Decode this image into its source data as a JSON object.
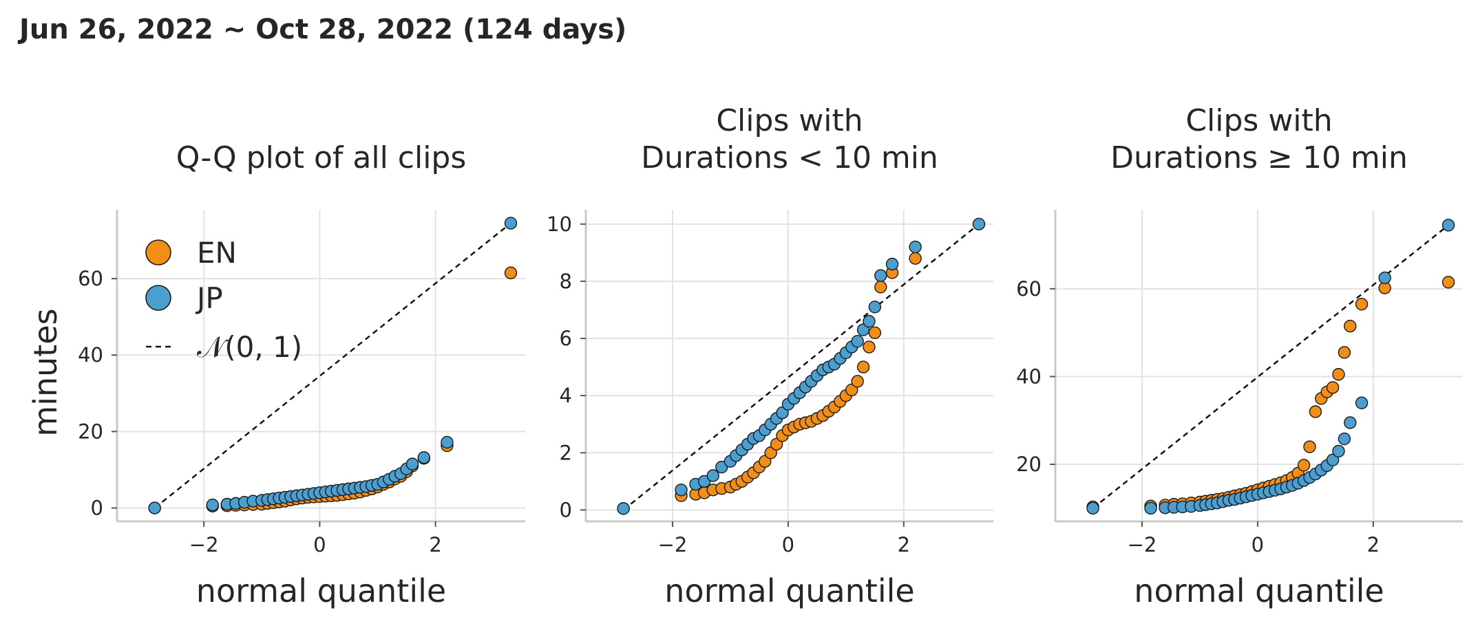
{
  "figure": {
    "suptitle": "Jun 26, 2022 ~ Oct 28, 2022 (124 days)",
    "colors": {
      "EN": "#f28e16",
      "JP": "#4a9fd0",
      "reference": "#111111",
      "grid": "#e2e2e2",
      "axis": "#c8c8c8"
    }
  },
  "chart_data": [
    {
      "type": "scatter",
      "title": "Q-Q plot of all clips",
      "xlabel": "normal quantile",
      "ylabel": "minutes",
      "xlim": [
        -3.5,
        3.55
      ],
      "ylim": [
        -3.5,
        78
      ],
      "xticks": [
        -2,
        0,
        2
      ],
      "xtick_labels": [
        "−2",
        "0",
        "2"
      ],
      "yticks": [
        0,
        20,
        40,
        60
      ],
      "ytick_labels": [
        "0",
        "20",
        "40",
        "60"
      ],
      "grid": true,
      "legend": {
        "placement": "top-left",
        "entries": [
          "EN",
          "JP",
          "𝒩(0, 1)"
        ]
      },
      "reference_line": {
        "name": "𝒩(0, 1)",
        "from": [
          -2.85,
          0
        ],
        "to": [
          3.3,
          74.5
        ]
      },
      "series": [
        {
          "name": "EN",
          "x": [
            -2.85,
            -1.85,
            -1.6,
            -1.45,
            -1.3,
            -1.15,
            -1.0,
            -0.9,
            -0.8,
            -0.7,
            -0.6,
            -0.5,
            -0.4,
            -0.3,
            -0.2,
            -0.1,
            0,
            0.1,
            0.2,
            0.3,
            0.4,
            0.5,
            0.6,
            0.7,
            0.8,
            0.9,
            1.0,
            1.1,
            1.2,
            1.3,
            1.4,
            1.5,
            1.6,
            1.8,
            2.2,
            3.3
          ],
          "y": [
            0,
            0.5,
            0.6,
            0.7,
            0.8,
            0.9,
            1.0,
            1.2,
            1.4,
            1.6,
            1.8,
            2.1,
            2.4,
            2.6,
            2.8,
            2.9,
            3.0,
            3.1,
            3.2,
            3.3,
            3.5,
            3.7,
            3.9,
            4.2,
            4.6,
            5.0,
            5.5,
            6.2,
            6.8,
            7.6,
            8.3,
            9.5,
            11.0,
            13.0,
            16.3,
            61.5
          ]
        },
        {
          "name": "JP",
          "x": [
            -2.85,
            -1.85,
            -1.6,
            -1.45,
            -1.3,
            -1.15,
            -1.0,
            -0.9,
            -0.8,
            -0.7,
            -0.6,
            -0.5,
            -0.4,
            -0.3,
            -0.2,
            -0.1,
            0,
            0.1,
            0.2,
            0.3,
            0.4,
            0.5,
            0.6,
            0.7,
            0.8,
            0.9,
            1.0,
            1.1,
            1.2,
            1.3,
            1.4,
            1.5,
            1.6,
            1.8,
            2.2,
            3.3
          ],
          "y": [
            0,
            0.8,
            1.0,
            1.2,
            1.5,
            1.8,
            2.0,
            2.2,
            2.4,
            2.6,
            2.8,
            3.0,
            3.2,
            3.4,
            3.6,
            3.8,
            4.0,
            4.2,
            4.4,
            4.6,
            4.8,
            5.0,
            5.2,
            5.4,
            5.6,
            5.9,
            6.2,
            6.8,
            7.5,
            8.3,
            9.0,
            10.2,
            11.5,
            13.2,
            17.2,
            74.5
          ]
        }
      ]
    },
    {
      "type": "scatter",
      "title": "Clips with\nDurations  <  10 min",
      "xlabel": "normal quantile",
      "ylabel": "",
      "xlim": [
        -3.5,
        3.55
      ],
      "ylim": [
        -0.4,
        10.5
      ],
      "xticks": [
        -2,
        0,
        2
      ],
      "xtick_labels": [
        "−2",
        "0",
        "2"
      ],
      "yticks": [
        0,
        2,
        4,
        6,
        8,
        10
      ],
      "ytick_labels": [
        "0",
        "2",
        "4",
        "6",
        "8",
        "10"
      ],
      "grid": true,
      "reference_line": {
        "name": "𝒩(0, 1)",
        "from": [
          -2.85,
          0
        ],
        "to": [
          3.3,
          10
        ]
      },
      "series": [
        {
          "name": "EN",
          "x": [
            -2.85,
            -1.85,
            -1.6,
            -1.45,
            -1.3,
            -1.15,
            -1.0,
            -0.9,
            -0.8,
            -0.7,
            -0.6,
            -0.5,
            -0.4,
            -0.3,
            -0.2,
            -0.1,
            0,
            0.1,
            0.2,
            0.3,
            0.4,
            0.5,
            0.6,
            0.7,
            0.8,
            0.9,
            1.0,
            1.1,
            1.2,
            1.3,
            1.4,
            1.5,
            1.6,
            1.8,
            2.2
          ],
          "y": [
            0.05,
            0.5,
            0.55,
            0.6,
            0.7,
            0.75,
            0.8,
            0.9,
            1.0,
            1.15,
            1.3,
            1.5,
            1.7,
            2.0,
            2.3,
            2.6,
            2.8,
            2.9,
            3.0,
            3.05,
            3.1,
            3.2,
            3.3,
            3.45,
            3.6,
            3.8,
            4.0,
            4.2,
            4.5,
            5.0,
            5.7,
            6.2,
            7.8,
            8.3,
            8.8
          ]
        },
        {
          "name": "JP",
          "x": [
            -2.85,
            -1.85,
            -1.6,
            -1.45,
            -1.3,
            -1.15,
            -1.0,
            -0.9,
            -0.8,
            -0.7,
            -0.6,
            -0.5,
            -0.4,
            -0.3,
            -0.2,
            -0.1,
            0,
            0.1,
            0.2,
            0.3,
            0.4,
            0.5,
            0.6,
            0.7,
            0.8,
            0.9,
            1.0,
            1.1,
            1.2,
            1.3,
            1.4,
            1.5,
            1.6,
            1.8,
            2.2,
            3.3
          ],
          "y": [
            0.05,
            0.7,
            0.9,
            1.0,
            1.2,
            1.5,
            1.7,
            1.9,
            2.1,
            2.3,
            2.5,
            2.6,
            2.8,
            3.0,
            3.2,
            3.4,
            3.7,
            3.9,
            4.1,
            4.3,
            4.5,
            4.7,
            4.9,
            5.0,
            5.1,
            5.3,
            5.5,
            5.7,
            5.9,
            6.3,
            6.6,
            7.1,
            8.2,
            8.6,
            9.2,
            10.0
          ]
        }
      ]
    },
    {
      "type": "scatter",
      "title": "Clips with\nDurations  ≥  10 min",
      "xlabel": "normal quantile",
      "ylabel": "",
      "xlim": [
        -3.5,
        3.55
      ],
      "ylim": [
        7,
        78
      ],
      "xticks": [
        -2,
        0,
        2
      ],
      "xtick_labels": [
        "−2",
        "0",
        "2"
      ],
      "yticks": [
        20,
        40,
        60
      ],
      "ytick_labels": [
        "20",
        "40",
        "60"
      ],
      "grid": true,
      "reference_line": {
        "name": "𝒩(0, 1)",
        "from": [
          -2.85,
          10
        ],
        "to": [
          3.3,
          74.5
        ]
      },
      "series": [
        {
          "name": "EN",
          "x": [
            -2.85,
            -1.85,
            -1.6,
            -1.45,
            -1.3,
            -1.15,
            -1.0,
            -0.9,
            -0.8,
            -0.7,
            -0.6,
            -0.5,
            -0.4,
            -0.3,
            -0.2,
            -0.1,
            0,
            0.1,
            0.2,
            0.3,
            0.4,
            0.5,
            0.6,
            0.7,
            0.8,
            0.9,
            1.0,
            1.1,
            1.2,
            1.3,
            1.4,
            1.5,
            1.6,
            1.8,
            2.2,
            3.3
          ],
          "y": [
            10.3,
            10.5,
            10.7,
            10.9,
            11.0,
            11.2,
            11.4,
            11.6,
            11.8,
            12.0,
            12.2,
            12.5,
            12.8,
            13.1,
            13.4,
            13.8,
            14.2,
            14.6,
            15.0,
            15.4,
            15.8,
            16.3,
            17.0,
            18.0,
            19.8,
            24.0,
            32.0,
            35.0,
            36.5,
            37.5,
            40.5,
            45.5,
            51.5,
            56.5,
            60.2,
            61.5
          ]
        },
        {
          "name": "JP",
          "x": [
            -2.85,
            -1.85,
            -1.6,
            -1.45,
            -1.3,
            -1.15,
            -1.0,
            -0.9,
            -0.8,
            -0.7,
            -0.6,
            -0.5,
            -0.4,
            -0.3,
            -0.2,
            -0.1,
            0,
            0.1,
            0.2,
            0.3,
            0.4,
            0.5,
            0.6,
            0.7,
            0.8,
            0.9,
            1.0,
            1.1,
            1.2,
            1.3,
            1.4,
            1.5,
            1.6,
            1.8,
            2.2,
            3.3
          ],
          "y": [
            10.0,
            10.0,
            10.1,
            10.2,
            10.3,
            10.4,
            10.6,
            10.8,
            11.0,
            11.2,
            11.5,
            11.8,
            12.0,
            12.3,
            12.6,
            12.9,
            13.2,
            13.5,
            13.8,
            14.1,
            14.4,
            14.8,
            15.2,
            15.7,
            16.3,
            17.0,
            17.8,
            18.7,
            19.7,
            21.0,
            23.0,
            25.8,
            29.5,
            34.0,
            62.5,
            74.5
          ]
        }
      ]
    }
  ]
}
